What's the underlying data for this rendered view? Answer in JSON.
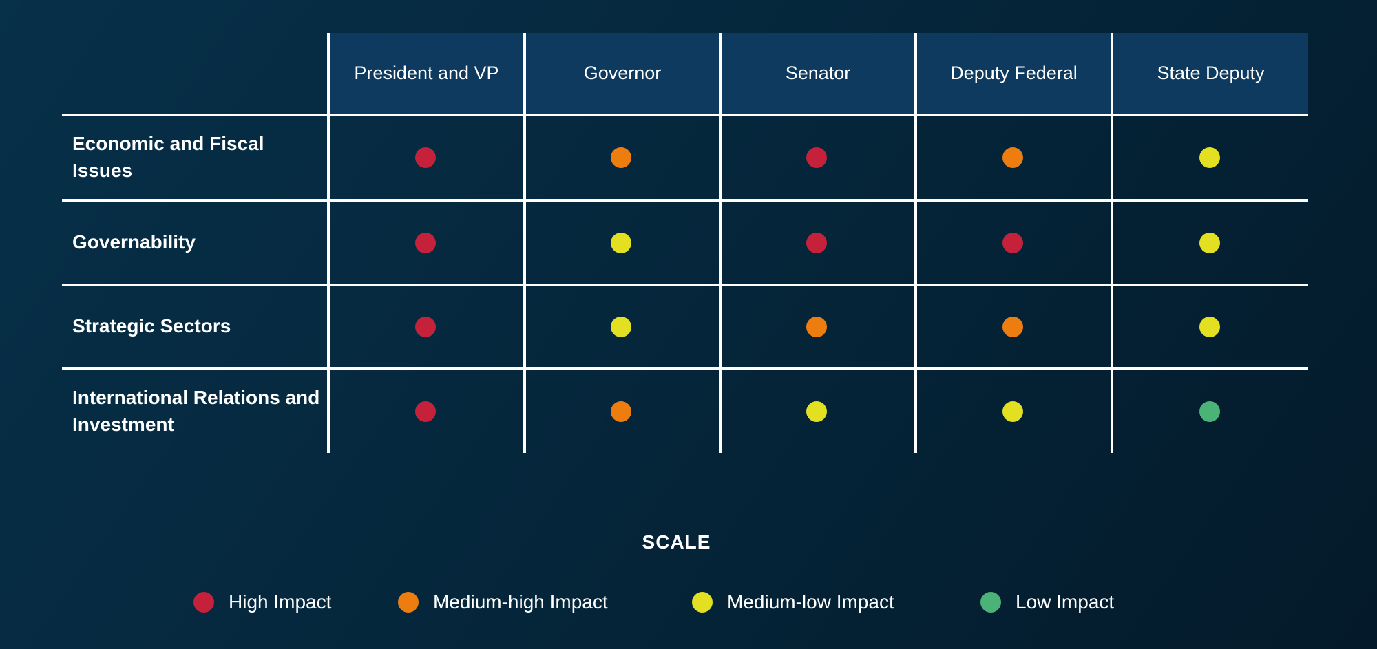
{
  "table": {
    "columns": [
      "President and VP",
      "Governor",
      "Senator",
      "Deputy Federal",
      "State Deputy"
    ],
    "rows": [
      {
        "label": "Economic and Fiscal Issues",
        "cells": [
          "high",
          "medium_high",
          "high",
          "medium_high",
          "medium_low"
        ]
      },
      {
        "label": "Governability",
        "cells": [
          "high",
          "medium_low",
          "high",
          "high",
          "medium_low"
        ]
      },
      {
        "label": "Strategic Sectors",
        "cells": [
          "high",
          "medium_low",
          "medium_high",
          "medium_high",
          "medium_low"
        ]
      },
      {
        "label": "International Relations and Investment",
        "cells": [
          "high",
          "medium_high",
          "medium_low",
          "medium_low",
          "low"
        ]
      }
    ]
  },
  "legend": {
    "title": "SCALE",
    "items": [
      {
        "id": "high",
        "label": "High Impact",
        "color": "#c5213a"
      },
      {
        "id": "medium_high",
        "label": "Medium-high Impact",
        "color": "#ee7d10"
      },
      {
        "id": "medium_low",
        "label": "Medium-low Impact",
        "color": "#e3df21"
      },
      {
        "id": "low",
        "label": "Low Impact",
        "color": "#4cb377"
      }
    ]
  },
  "colors": {
    "header_bg": "#0d3a5e",
    "grid_line": "#ffffff",
    "text_color": "#ffffff",
    "bg_start": "#073049",
    "bg_mid": "#05273c",
    "bg_end": "#041a2a"
  },
  "chart_data": {
    "type": "heatmap",
    "columns": [
      "President and VP",
      "Governor",
      "Senator",
      "Deputy Federal",
      "State Deputy"
    ],
    "rows": [
      "Economic and Fiscal Issues",
      "Governability",
      "Strategic Sectors",
      "International Relations and Investment"
    ],
    "values": [
      [
        "High",
        "Medium-high",
        "High",
        "Medium-high",
        "Medium-low"
      ],
      [
        "High",
        "Medium-low",
        "High",
        "High",
        "Medium-low"
      ],
      [
        "High",
        "Medium-low",
        "Medium-high",
        "Medium-high",
        "Medium-low"
      ],
      [
        "High",
        "Medium-high",
        "Medium-low",
        "Medium-low",
        "Low"
      ]
    ],
    "legend_title": "SCALE",
    "legend": [
      {
        "label": "High Impact",
        "color": "#c5213a"
      },
      {
        "label": "Medium-high Impact",
        "color": "#ee7d10"
      },
      {
        "label": "Medium-low Impact",
        "color": "#e3df21"
      },
      {
        "label": "Low Impact",
        "color": "#4cb377"
      }
    ],
    "layout": {
      "grid": true,
      "legend_position": "bottom-center"
    }
  }
}
